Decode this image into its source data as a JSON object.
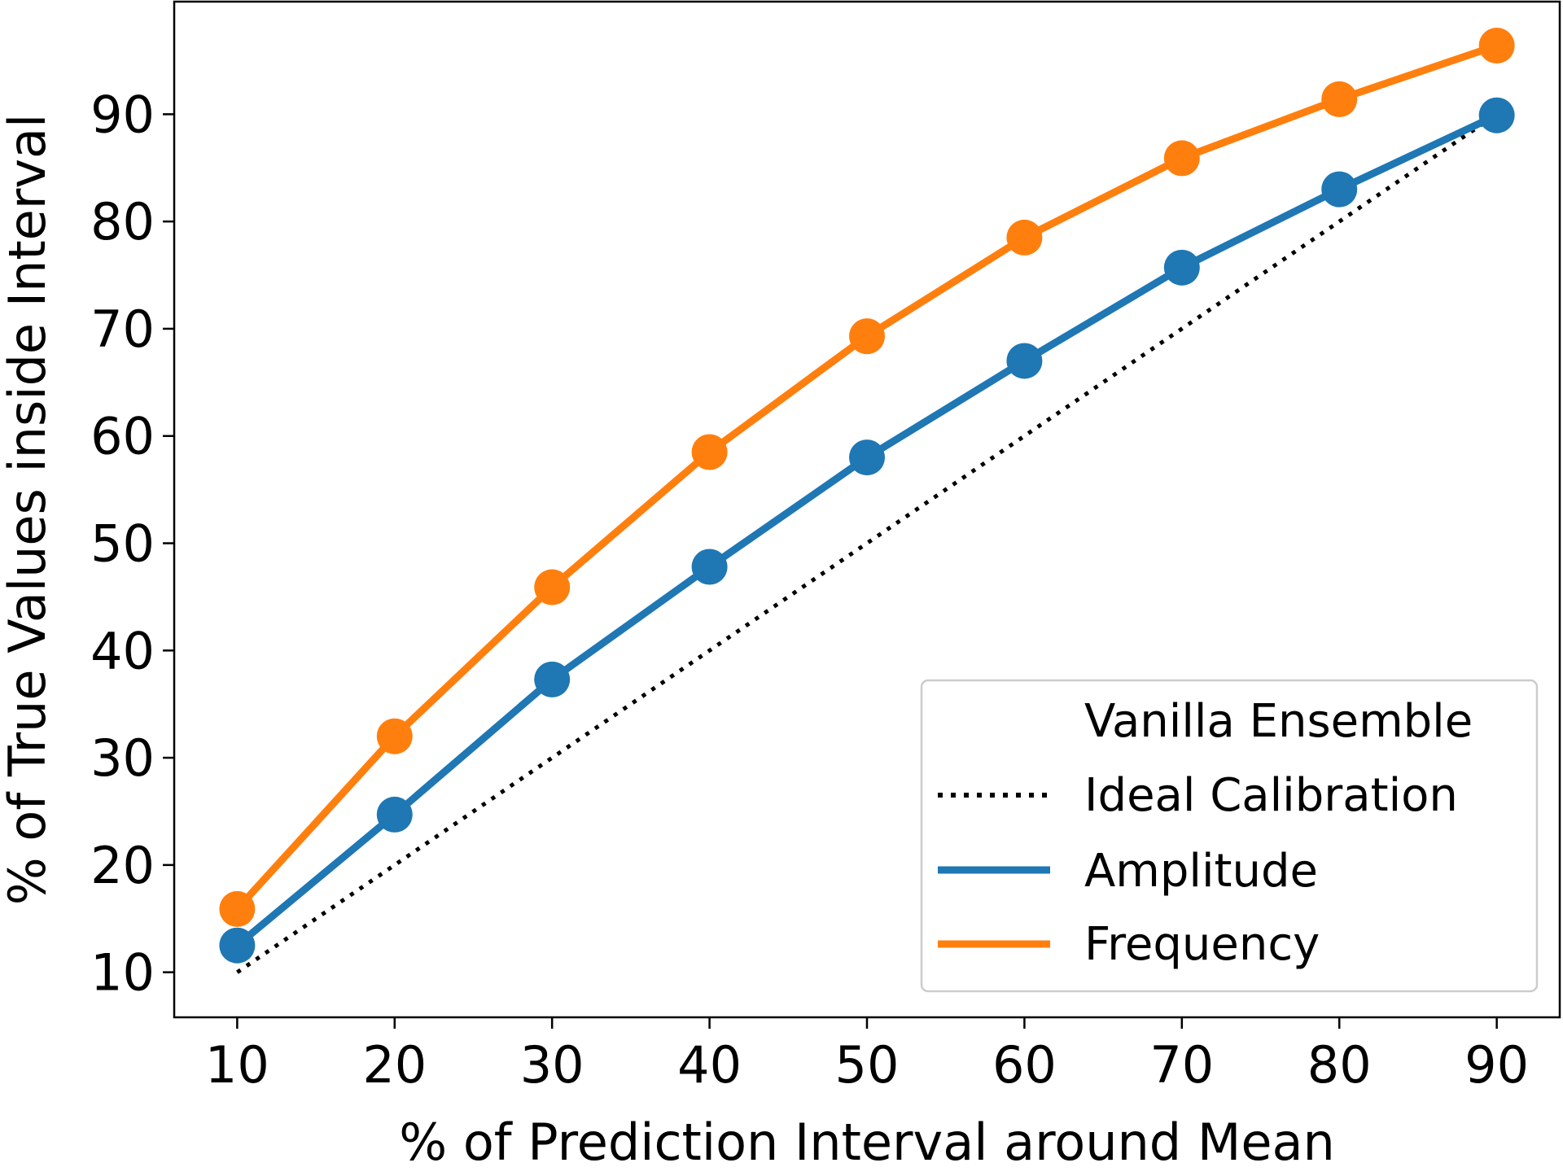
{
  "chart_data": {
    "type": "line",
    "title": "",
    "xlabel": "% of Prediction Interval around Mean",
    "ylabel": "% of True Values inside Interval",
    "x": [
      10,
      20,
      30,
      40,
      50,
      60,
      70,
      80,
      90
    ],
    "xlim": [
      6,
      94
    ],
    "ylim": [
      5.8,
      100.5
    ],
    "xticks": [
      10,
      20,
      30,
      40,
      50,
      60,
      70,
      80,
      90
    ],
    "yticks": [
      10,
      20,
      30,
      40,
      50,
      60,
      70,
      80,
      90
    ],
    "grid": false,
    "legend_position": "bottom-right",
    "legend_title": "Vanilla Ensemble",
    "series": [
      {
        "name": "Ideal Calibration",
        "style": "dotted",
        "markers": false,
        "color": "#000000",
        "values": [
          10,
          20,
          30,
          40,
          50,
          60,
          70,
          80,
          90
        ]
      },
      {
        "name": "Amplitude",
        "style": "solid",
        "markers": true,
        "color": "#1f77b4",
        "values": [
          12.5,
          24.7,
          37.3,
          47.8,
          58.0,
          67.0,
          75.7,
          83.0,
          89.9
        ]
      },
      {
        "name": "Frequency",
        "style": "solid",
        "markers": true,
        "color": "#ff7f0e",
        "values": [
          15.9,
          32.0,
          45.9,
          58.5,
          69.3,
          78.5,
          85.9,
          91.4,
          96.4
        ]
      }
    ]
  }
}
